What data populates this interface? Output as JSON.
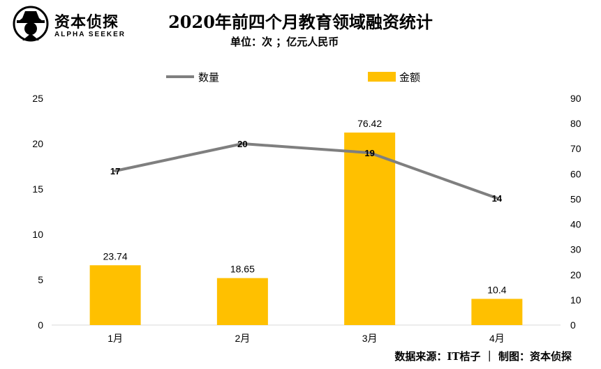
{
  "logo": {
    "name": "资本侦探",
    "sub": "ALPHA SEEKER"
  },
  "title": "2020年前四个月教育领域融资统计",
  "subtitle": "单位：次 ；亿元人民币",
  "footer": "数据来源：IT桔子 ｜ 制图：资本侦探",
  "colors": {
    "line": "#7f7f7f",
    "bar": "#ffc000"
  },
  "chart_data": {
    "type": "bar",
    "categories": [
      "1月",
      "2月",
      "3月",
      "4月"
    ],
    "series": [
      {
        "name": "金额",
        "type": "bar",
        "axis": "right",
        "values": [
          23.74,
          18.65,
          76.42,
          10.4
        ]
      },
      {
        "name": "数量",
        "type": "line",
        "axis": "left",
        "values": [
          17,
          20,
          19,
          14
        ]
      }
    ],
    "y_left": {
      "min": 0,
      "max": 25,
      "ticks": [
        0,
        5,
        10,
        15,
        20,
        25
      ]
    },
    "y_right": {
      "min": 0,
      "max": 90,
      "ticks": [
        0,
        10,
        20,
        30,
        40,
        50,
        60,
        70,
        80,
        90
      ]
    },
    "legend": [
      "数量",
      "金额"
    ],
    "legend_position": "top",
    "grid": false
  }
}
